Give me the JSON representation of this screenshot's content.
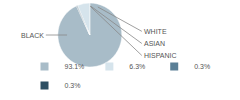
{
  "chart_data": {
    "type": "pie",
    "categories": [
      "BLACK",
      "WHITE",
      "ASIAN",
      "HISPANIC"
    ],
    "values": [
      93.1,
      6.3,
      0.3,
      0.3
    ],
    "value_labels": [
      "93.1%",
      "6.3%",
      "0.3%",
      "0.3%"
    ],
    "colors": [
      "#a8bcc8",
      "#d6e4ec",
      "#5a7f96",
      "#2d4f63"
    ],
    "legend": "bottom"
  }
}
